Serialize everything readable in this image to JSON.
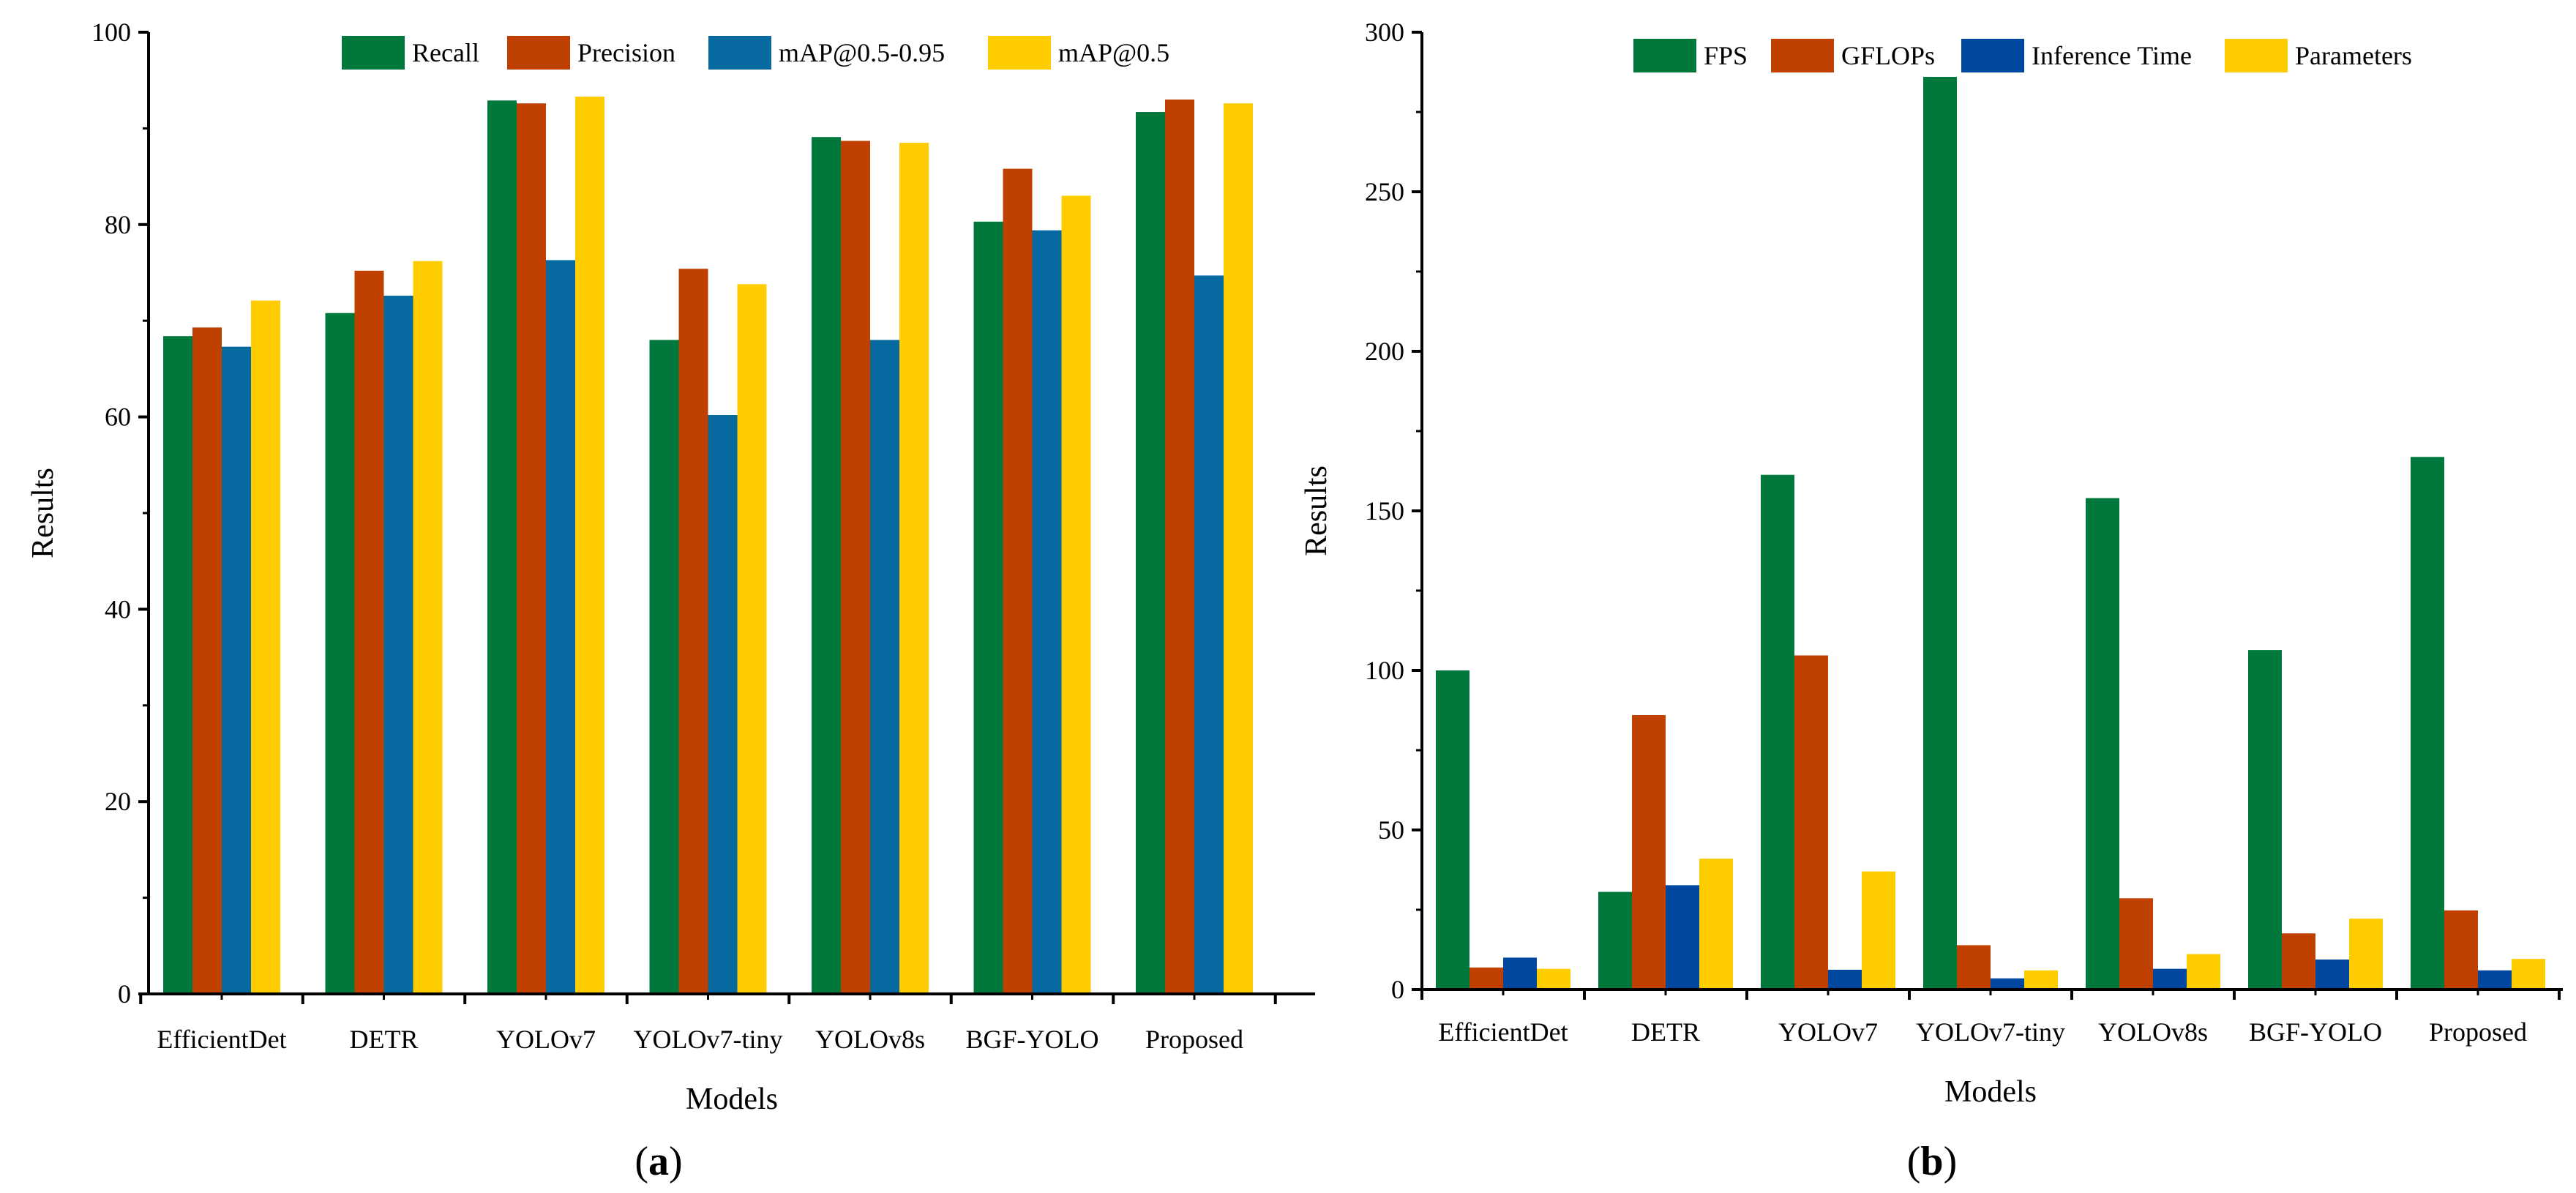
{
  "colors": {
    "green": "#00783C",
    "orange": "#C04000",
    "steel_blue": "#0669A0",
    "navy_blue": "#0047A0",
    "yellow": "#FFCC00"
  },
  "chart_data": [
    {
      "type": "bar",
      "panel_label": "(a)",
      "panel_letter": "a",
      "xlabel": "Models",
      "ylabel": "Results",
      "ylim": [
        0,
        100
      ],
      "yticks": [
        0,
        20,
        40,
        60,
        80,
        100
      ],
      "grid": false,
      "legend_position": "top",
      "categories": [
        "EfficientDet",
        "DETR",
        "YOLOv7",
        "YOLOv7-tiny",
        "YOLOv8s",
        "BGF-YOLO",
        "Proposed"
      ],
      "series": [
        {
          "name": "Recall",
          "color": "#00783C",
          "values": [
            68.4,
            70.8,
            92.9,
            68.0,
            89.1,
            80.3,
            91.7
          ]
        },
        {
          "name": "Precision",
          "color": "#C04000",
          "values": [
            69.3,
            75.2,
            92.6,
            75.4,
            88.7,
            85.8,
            93.0
          ]
        },
        {
          "name": "mAP@0.5-0.95",
          "color": "#0669A0",
          "values": [
            67.3,
            72.6,
            76.3,
            60.2,
            68.0,
            79.4,
            74.7
          ]
        },
        {
          "name": "mAP@0.5",
          "color": "#FFCC00",
          "values": [
            72.1,
            76.2,
            93.3,
            73.8,
            88.5,
            83.0,
            92.6
          ]
        }
      ]
    },
    {
      "type": "bar",
      "panel_label": "(b)",
      "panel_letter": "b",
      "xlabel": "Models",
      "ylabel": "Results",
      "ylim": [
        0,
        300
      ],
      "yticks": [
        0,
        50,
        100,
        150,
        200,
        250,
        300
      ],
      "grid": false,
      "legend_position": "top",
      "categories": [
        "EfficientDet",
        "DETR",
        "YOLOv7",
        "YOLOv7-tiny",
        "YOLOv8s",
        "BGF-YOLO",
        "Proposed"
      ],
      "series": [
        {
          "name": "FPS",
          "color": "#00783C",
          "values": [
            100.0,
            30.6,
            161.3,
            286.0,
            154.0,
            106.4,
            166.9
          ]
        },
        {
          "name": "GFLOPs",
          "color": "#C04000",
          "values": [
            6.9,
            86.0,
            104.7,
            13.9,
            28.6,
            17.6,
            24.8
          ]
        },
        {
          "name": "Inference Time",
          "color": "#0047A0",
          "values": [
            10.0,
            32.7,
            6.2,
            3.5,
            6.5,
            9.4,
            6.0
          ]
        },
        {
          "name": "Parameters",
          "color": "#FFCC00",
          "values": [
            6.5,
            41.0,
            37.0,
            6.0,
            11.1,
            22.2,
            9.6
          ]
        }
      ]
    }
  ]
}
